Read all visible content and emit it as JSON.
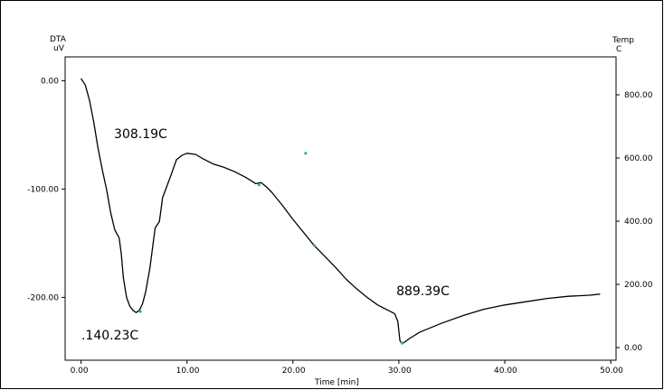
{
  "chart_data": {
    "type": "line",
    "title": "",
    "xlabel": "Time [min]",
    "ylabel_left": "DTA uV",
    "ylabel_left_line1": "DTA",
    "ylabel_left_line2": "uV",
    "ylabel_right": "Temp C",
    "ylabel_right_line1": "Temp",
    "ylabel_right_line2": "C",
    "xlim": [
      -1.5,
      50.5
    ],
    "ylim_left": [
      -258,
      22
    ],
    "ylim_right": [
      -40,
      920
    ],
    "x_ticks": [
      "0.00",
      "10.00",
      "20.00",
      "30.00",
      "40.00",
      "50.00"
    ],
    "x_tick_values": [
      0,
      10,
      20,
      30,
      40,
      50
    ],
    "y_left_ticks": [
      "0.00",
      "-100.00",
      "-200.00"
    ],
    "y_left_tick_values": [
      0,
      -100,
      -200
    ],
    "y_right_ticks": [
      "800.00",
      "600.00",
      "400.00",
      "200.00",
      "0.00"
    ],
    "y_right_tick_values": [
      800,
      600,
      400,
      200,
      0
    ],
    "grid": false,
    "line_color": "#000000",
    "marker_color": "#3aa6a6",
    "series": [
      {
        "values_x": [
          0,
          0.4,
          0.8,
          1.2,
          1.6,
          2.0,
          2.4,
          2.8,
          3.2,
          3.6,
          3.8,
          4.0,
          4.3,
          4.6,
          4.9,
          5.2,
          5.5,
          5.8,
          6.1,
          6.5,
          7.0,
          7.4,
          7.7,
          8.0,
          8.5,
          9.0,
          9.5,
          10.0,
          10.8,
          11.5,
          12.5,
          13.5,
          14.5,
          15.5,
          16.5,
          17.0,
          17.5,
          18.0,
          19.0,
          20.0,
          21.0,
          22.0,
          23.0,
          24.0,
          25.0,
          26.0,
          27.0,
          28.0,
          29.0,
          29.6,
          29.9,
          30.1,
          30.3,
          31.0,
          32.0,
          34.0,
          36.0,
          38.0,
          40.0,
          42.0,
          44.0,
          46.0,
          48.0,
          49.0
        ],
        "values_y": [
          2,
          -4,
          -18,
          -38,
          -62,
          -82,
          -100,
          -122,
          -138,
          -145,
          -160,
          -182,
          -200,
          -208,
          -212,
          -214,
          -212,
          -206,
          -195,
          -173,
          -136,
          -130,
          -108,
          -100,
          -87,
          -73,
          -69,
          -67,
          -68,
          -72,
          -77,
          -80,
          -84,
          -89,
          -95,
          -94,
          -98,
          -103,
          -115,
          -128,
          -140,
          -152,
          -162,
          -172,
          -183,
          -192,
          -200,
          -207,
          -212,
          -215,
          -222,
          -240,
          -243,
          -238,
          -232,
          -224,
          -217,
          -211,
          -207,
          -204,
          -201,
          -199,
          -198,
          -197
        ]
      }
    ],
    "annotations": [
      {
        "text": ".140.23C",
        "x": 5.5,
        "y": -214
      },
      {
        "text": "308.19C",
        "x": 10.8,
        "y": -68
      },
      {
        "text": "889.39C",
        "x": 30.1,
        "y": -243
      }
    ],
    "marker_points": [
      {
        "x": 5.6,
        "y": -213
      },
      {
        "x": 16.8,
        "y": -96
      },
      {
        "x": 22.0,
        "y": -152
      },
      {
        "x": 30.3,
        "y": -242
      },
      {
        "x": 21.2,
        "y": -67
      }
    ]
  }
}
